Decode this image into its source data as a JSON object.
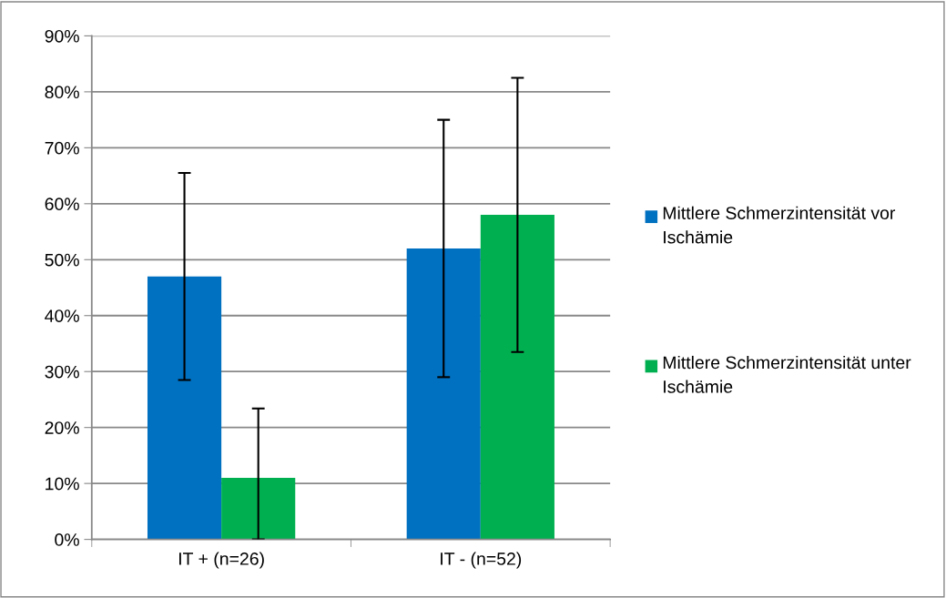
{
  "chart_data": {
    "type": "bar",
    "categories": [
      "IT + (n=26)",
      "IT - (n=52)"
    ],
    "series": [
      {
        "name": "Mittlere Schmerzintensität vor Ischämie",
        "color": "#0070c0",
        "values": [
          47,
          52
        ],
        "errors": [
          18.5,
          23
        ]
      },
      {
        "name": "Mittlere Schmerzintensität unter Ischämie",
        "color": "#00b050",
        "values": [
          11,
          58
        ],
        "errors": [
          [
            0,
            23.4
          ],
          24.5
        ]
      }
    ],
    "ylim": [
      0,
      90
    ],
    "yticks": [
      {
        "value": 0,
        "label": "0%"
      },
      {
        "value": 10,
        "label": "10%"
      },
      {
        "value": 20,
        "label": "20%"
      },
      {
        "value": 30,
        "label": "30%"
      },
      {
        "value": 40,
        "label": "40%"
      },
      {
        "value": 50,
        "label": "50%"
      },
      {
        "value": 60,
        "label": "60%"
      },
      {
        "value": 70,
        "label": "70%"
      },
      {
        "value": 80,
        "label": "80%"
      },
      {
        "value": 90,
        "label": "90%"
      }
    ],
    "grid": "y",
    "legend": "right"
  }
}
